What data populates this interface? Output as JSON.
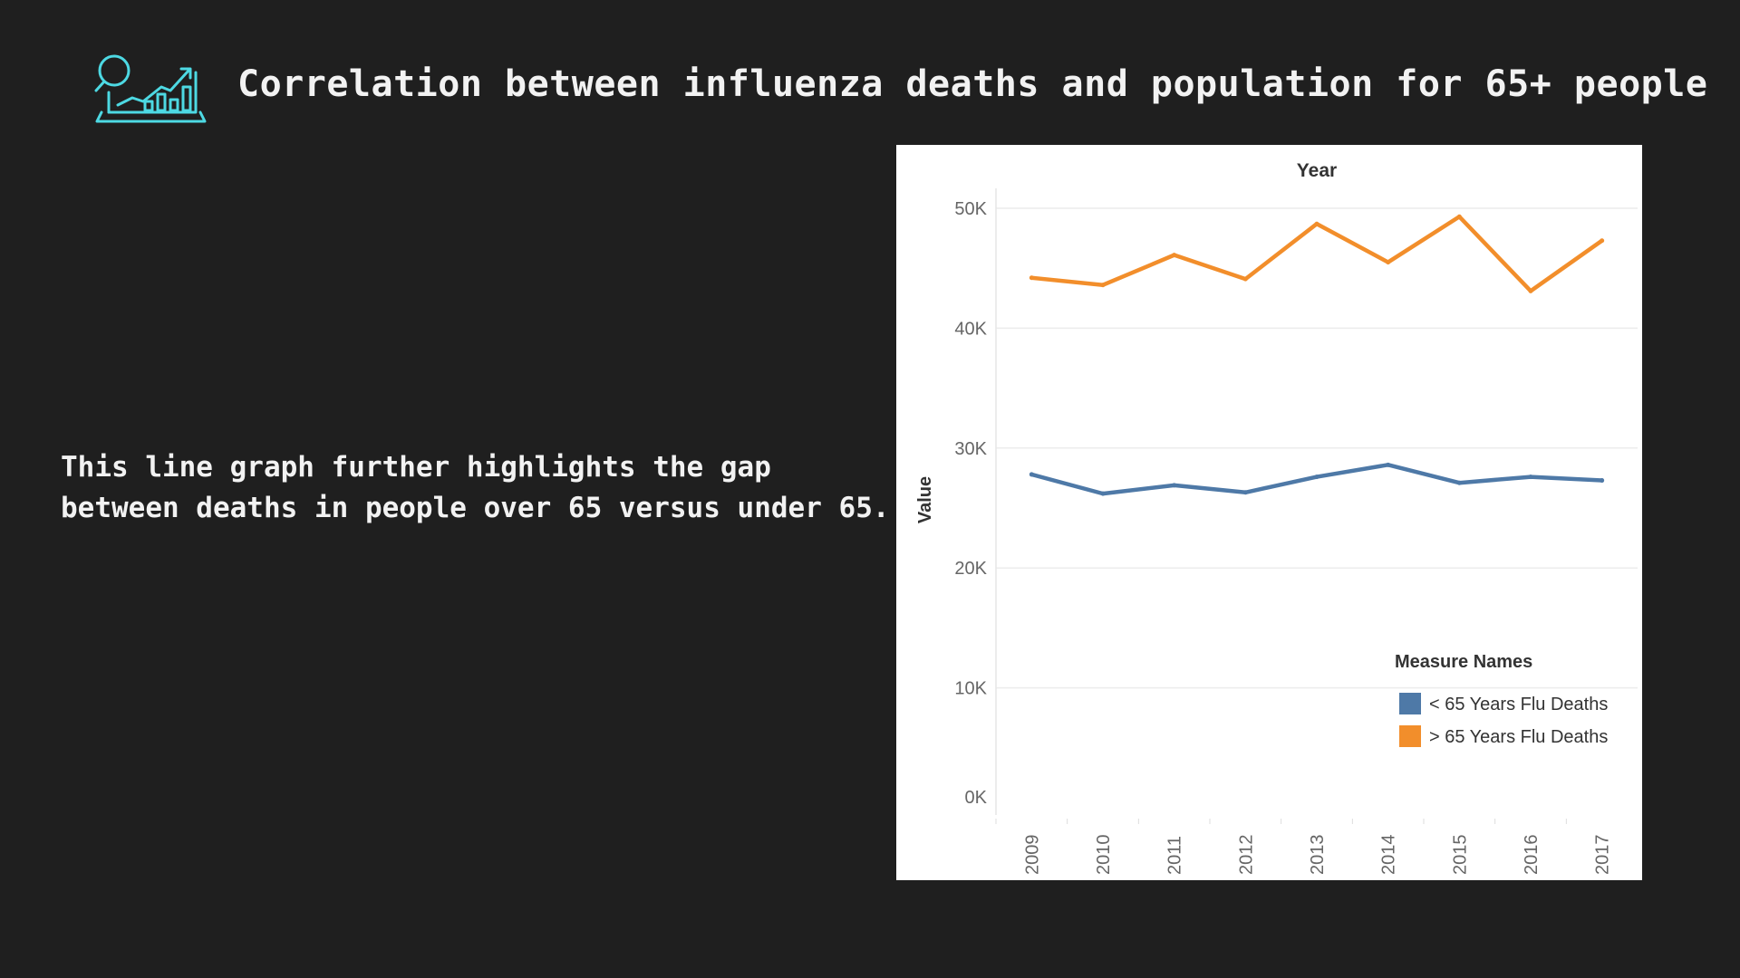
{
  "slide": {
    "title": "Correlation between influenza deaths and population for 65+ people",
    "body_lines": [
      "This line graph further highlights the gap",
      "between deaths in people over 65 versus under 65."
    ],
    "icon": "chart-analytics-icon",
    "icon_color": "#4dd9e3"
  },
  "chart_data": {
    "type": "line",
    "title": "Year",
    "xlabel": "Year",
    "ylabel": "Value",
    "categories": [
      "2009",
      "2010",
      "2011",
      "2012",
      "2013",
      "2014",
      "2015",
      "2016",
      "2017"
    ],
    "y_ticks": [
      "0K",
      "10K",
      "20K",
      "30K",
      "40K",
      "50K"
    ],
    "ylim": [
      0,
      50000
    ],
    "grid": true,
    "legend_title": "Measure Names",
    "legend_position": "bottom-right",
    "series": [
      {
        "name": "< 65 Years Flu Deaths",
        "color": "#4e79a7",
        "values": [
          27800,
          26200,
          26900,
          26300,
          27600,
          28600,
          27100,
          27600,
          27300
        ]
      },
      {
        "name": "> 65 Years Flu Deaths",
        "color": "#f28e2b",
        "values": [
          44200,
          43600,
          46100,
          44100,
          48700,
          45500,
          49300,
          43100,
          47300
        ]
      }
    ]
  }
}
